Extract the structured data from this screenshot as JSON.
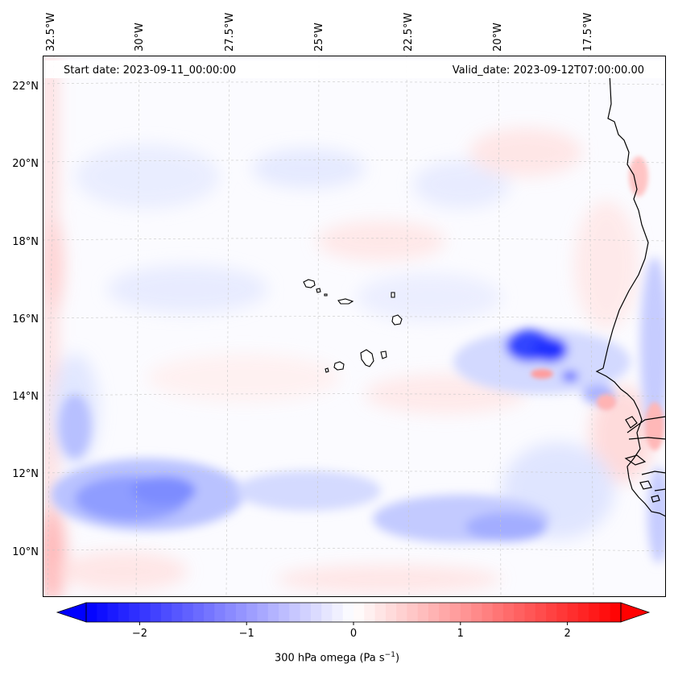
{
  "map": {
    "start_date_label": "Start date: 2023-09-11_00:00:00",
    "valid_date_label": "Valid_date: 2023-09-12T07:00:00.00",
    "longitude_ticks": [
      "32.5°W",
      "30°W",
      "27.5°W",
      "25°W",
      "22.5°W",
      "20°W",
      "17.5°W"
    ],
    "latitude_ticks": [
      "22°N",
      "20°N",
      "18°N",
      "16°N",
      "14°N",
      "12°N",
      "10°N"
    ],
    "field": "omega",
    "diverging_colors": {
      "negative": "#0000ff",
      "zero": "#ffffff",
      "positive": "#ff0000"
    },
    "coastline_color": "#000000"
  },
  "colorbar": {
    "ticks": [
      "−2",
      "−1",
      "0",
      "1",
      "2"
    ],
    "tick_values": [
      -2,
      -1,
      0,
      1,
      2
    ],
    "range": [
      -2.5,
      2.5
    ],
    "levels": 50,
    "extend": "both",
    "label_prefix": "300 hPa omega (Pa s",
    "label_exp": "−1",
    "label_suffix": ")"
  }
}
